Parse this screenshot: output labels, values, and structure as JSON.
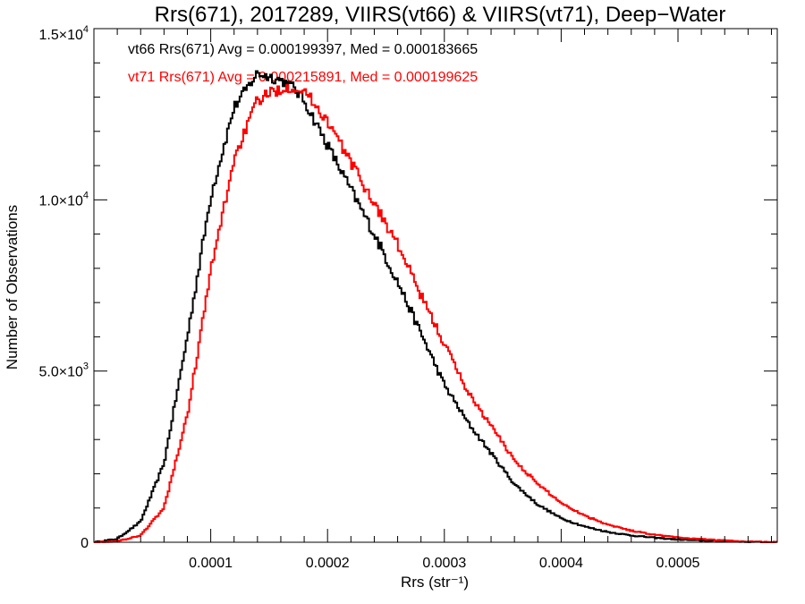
{
  "chart_data": {
    "type": "histogram-step",
    "title": "Rrs(671), 2017289, VIIRS(vt66) & VIIRS(vt71), Deep−Water",
    "xlabel": "Rrs (str⁻¹)",
    "ylabel": "Number of Observations",
    "xlim": [
      0.0,
      0.000585
    ],
    "ylim": [
      0,
      15000
    ],
    "x_ticks": [
      {
        "value": 0.0001,
        "label": "0.0001"
      },
      {
        "value": 0.0002,
        "label": "0.0002"
      },
      {
        "value": 0.0003,
        "label": "0.0003"
      },
      {
        "value": 0.0004,
        "label": "0.0004"
      },
      {
        "value": 0.0005,
        "label": "0.0005"
      }
    ],
    "y_ticks": [
      {
        "value": 0,
        "mantissa": "0",
        "exponent": ""
      },
      {
        "value": 5000,
        "mantissa": "5.0×10",
        "exponent": "3"
      },
      {
        "value": 10000,
        "mantissa": "1.0×10",
        "exponent": "4"
      },
      {
        "value": 15000,
        "mantissa": "1.5×10",
        "exponent": "4"
      }
    ],
    "legend": [
      {
        "text": "vt66 Rrs(671) Avg = 0.000199397, Med = 0.000183665",
        "color": "#000000"
      },
      {
        "text": "vt71 Rrs(671) Avg = 0.000215891, Med = 0.000199625",
        "color": "#ff0000"
      }
    ],
    "series": [
      {
        "color": "#000000",
        "x": [
          0.0,
          2e-05,
          4e-05,
          6e-05,
          8e-05,
          0.0001,
          0.00012,
          0.00014,
          0.00015,
          0.00016,
          0.00017,
          0.00018,
          0.0002,
          0.00022,
          0.00024,
          0.00026,
          0.00028,
          0.0003,
          0.00032,
          0.00034,
          0.00036,
          0.00038,
          0.0004,
          0.00042,
          0.00044,
          0.00046,
          0.00048,
          0.0005,
          0.00052,
          0.00054,
          0.00056,
          0.000585
        ],
        "y": [
          0,
          100,
          600,
          2300,
          6000,
          10100,
          12700,
          13700,
          13600,
          13500,
          13300,
          12900,
          11600,
          10300,
          9000,
          7600,
          6100,
          4600,
          3500,
          2600,
          1700,
          1100,
          700,
          460,
          300,
          200,
          130,
          80,
          50,
          30,
          15,
          0
        ]
      },
      {
        "color": "#ff0000",
        "x": [
          0.0,
          2e-05,
          4e-05,
          6e-05,
          8e-05,
          0.0001,
          0.00012,
          0.00014,
          0.00015,
          0.00016,
          0.00017,
          0.00018,
          0.0002,
          0.00022,
          0.00024,
          0.00026,
          0.00028,
          0.0003,
          0.00032,
          0.00034,
          0.00036,
          0.00038,
          0.0004,
          0.00042,
          0.00044,
          0.00046,
          0.00048,
          0.0005,
          0.00052,
          0.00054,
          0.00056,
          0.000585
        ],
        "y": [
          0,
          30,
          200,
          1000,
          3700,
          7900,
          11200,
          12900,
          13100,
          13250,
          13300,
          13200,
          12300,
          11100,
          9900,
          8700,
          7200,
          5800,
          4400,
          3400,
          2400,
          1700,
          1150,
          780,
          520,
          340,
          220,
          140,
          90,
          50,
          20,
          0
        ]
      }
    ]
  }
}
